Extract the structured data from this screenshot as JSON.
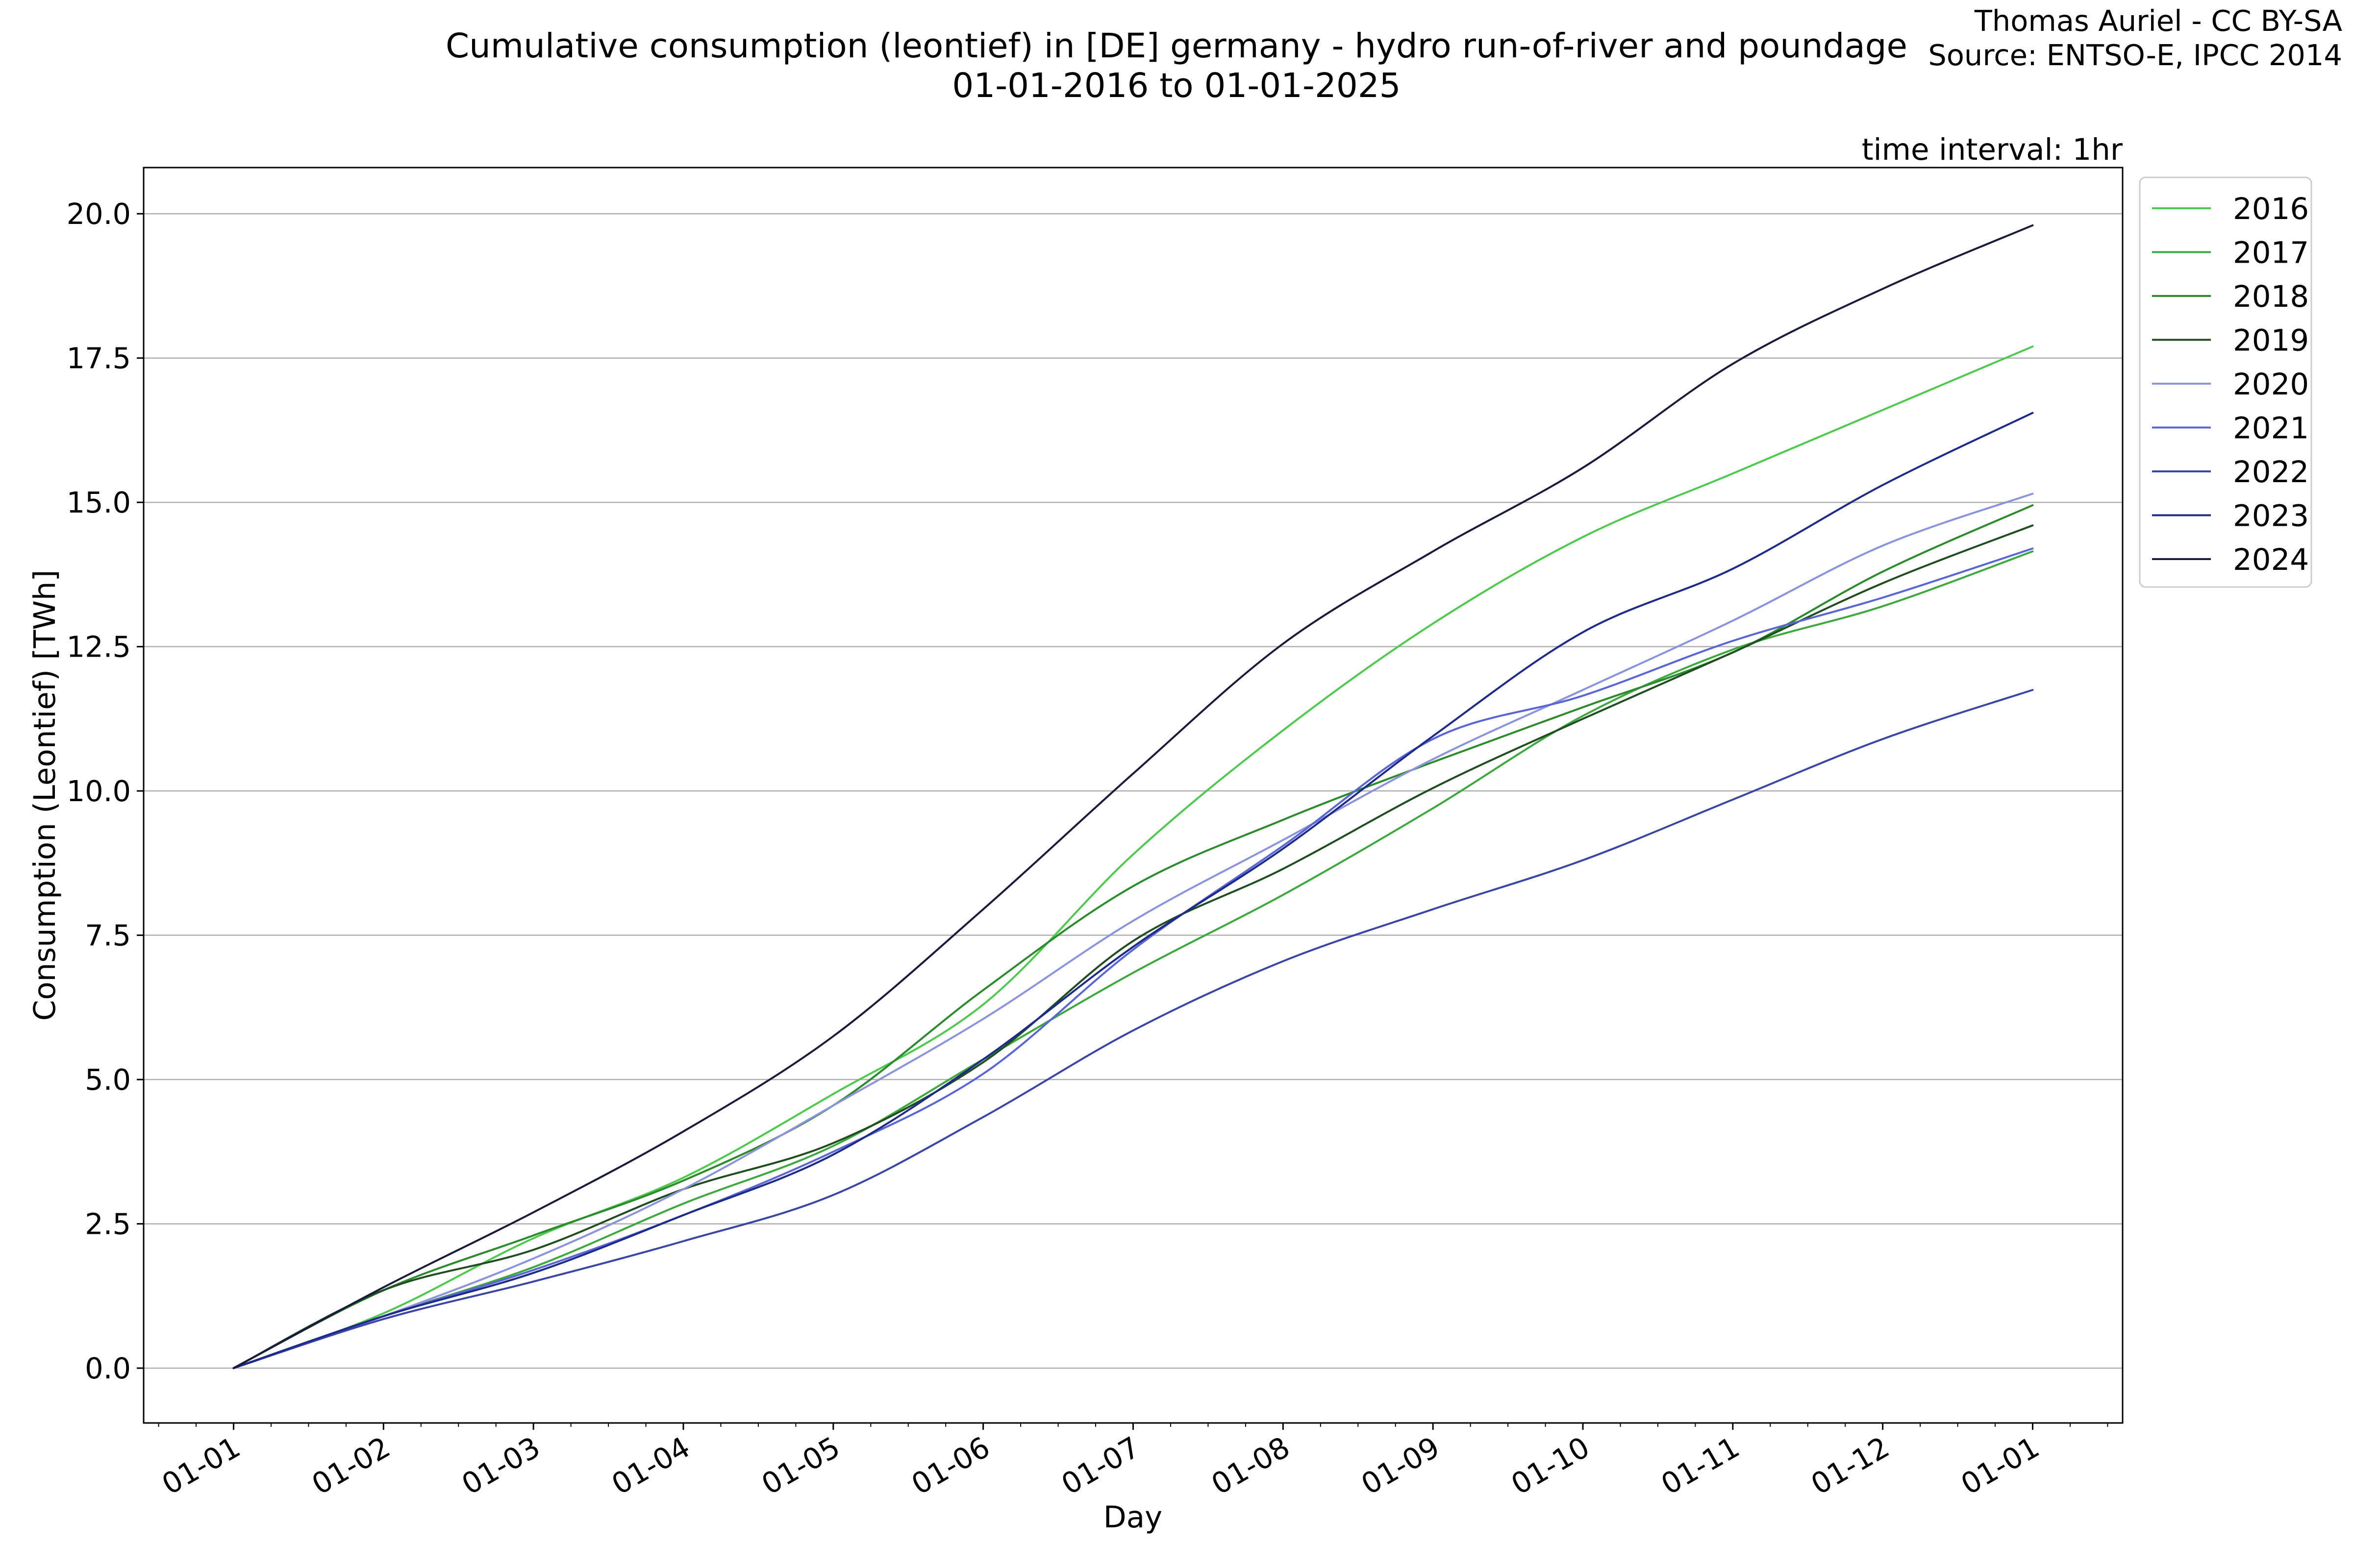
{
  "title_line1": "Cumulative consumption (leontief) in [DE] germany - hydro run-of-river and poundage",
  "title_line2": "01-01-2016 to 01-01-2025",
  "credit_line1": "Thomas Auriel - CC BY-SA",
  "credit_line2": "Source: ENTSO-E, IPCC 2014",
  "interval_note": "time interval: 1hr",
  "chart_data": {
    "type": "line",
    "xlabel": "Day",
    "ylabel": "Consumption (Leontief) [TWh]",
    "x_unit": "month",
    "xlim": [
      -0.6,
      12.6
    ],
    "ylim": [
      -0.95,
      20.8
    ],
    "x_ticks": [
      {
        "x": 0,
        "label": "01-01"
      },
      {
        "x": 1,
        "label": "01-02"
      },
      {
        "x": 2,
        "label": "01-03"
      },
      {
        "x": 3,
        "label": "01-04"
      },
      {
        "x": 4,
        "label": "01-05"
      },
      {
        "x": 5,
        "label": "01-06"
      },
      {
        "x": 6,
        "label": "01-07"
      },
      {
        "x": 7,
        "label": "01-08"
      },
      {
        "x": 8,
        "label": "01-09"
      },
      {
        "x": 9,
        "label": "01-10"
      },
      {
        "x": 10,
        "label": "01-11"
      },
      {
        "x": 11,
        "label": "01-12"
      },
      {
        "x": 12,
        "label": "01-01"
      }
    ],
    "y_ticks": [
      {
        "y": 0,
        "label": "0.0"
      },
      {
        "y": 2.5,
        "label": "2.5"
      },
      {
        "y": 5,
        "label": "5.0"
      },
      {
        "y": 7.5,
        "label": "7.5"
      },
      {
        "y": 10,
        "label": "10.0"
      },
      {
        "y": 12.5,
        "label": "12.5"
      },
      {
        "y": 15,
        "label": "15.0"
      },
      {
        "y": 17.5,
        "label": "17.5"
      },
      {
        "y": 20,
        "label": "20.0"
      }
    ],
    "grid": "horizontal",
    "legend_position": "outside right, top",
    "x": [
      0,
      1,
      2,
      3,
      4,
      5,
      6,
      7,
      8,
      9,
      10,
      11,
      12
    ],
    "series": [
      {
        "name": "2016",
        "color": "#4ec94e",
        "values": [
          0,
          0.95,
          2.25,
          3.3,
          4.75,
          6.3,
          8.9,
          11.05,
          12.9,
          14.4,
          15.5,
          16.6,
          17.7
        ]
      },
      {
        "name": "2017",
        "color": "#3da83d",
        "values": [
          0,
          0.9,
          1.75,
          2.85,
          3.85,
          5.35,
          6.85,
          8.2,
          9.7,
          11.3,
          12.45,
          13.2,
          14.15
        ]
      },
      {
        "name": "2018",
        "color": "#2b8a2b",
        "values": [
          0,
          1.35,
          2.3,
          3.25,
          4.55,
          6.55,
          8.35,
          9.5,
          10.5,
          11.45,
          12.4,
          13.8,
          14.95
        ]
      },
      {
        "name": "2019",
        "color": "#1f4d1f",
        "values": [
          0,
          1.35,
          2.05,
          3.1,
          3.9,
          5.3,
          7.4,
          8.65,
          10.05,
          11.25,
          12.4,
          13.6,
          14.6
        ]
      },
      {
        "name": "2020",
        "color": "#8b93dc",
        "values": [
          0,
          0.9,
          1.9,
          3.1,
          4.55,
          6.05,
          7.75,
          9.15,
          10.55,
          11.75,
          12.95,
          14.25,
          15.15
        ]
      },
      {
        "name": "2021",
        "color": "#5865d6",
        "values": [
          0,
          0.9,
          1.7,
          2.65,
          3.75,
          5.1,
          7.25,
          9.05,
          10.9,
          11.65,
          12.6,
          13.35,
          14.2
        ]
      },
      {
        "name": "2022",
        "color": "#3a45a6",
        "values": [
          0,
          0.85,
          1.5,
          2.2,
          3.0,
          4.35,
          5.85,
          7.05,
          7.95,
          8.8,
          9.85,
          10.9,
          11.75
        ]
      },
      {
        "name": "2023",
        "color": "#1e2a8a",
        "values": [
          0,
          0.9,
          1.65,
          2.65,
          3.7,
          5.35,
          7.3,
          9.0,
          10.95,
          12.75,
          13.85,
          15.3,
          16.55
        ]
      },
      {
        "name": "2024",
        "color": "#1a1a3a",
        "values": [
          0,
          1.4,
          2.7,
          4.1,
          5.75,
          7.95,
          10.3,
          12.55,
          14.15,
          15.6,
          17.4,
          18.7,
          19.8
        ]
      }
    ]
  }
}
